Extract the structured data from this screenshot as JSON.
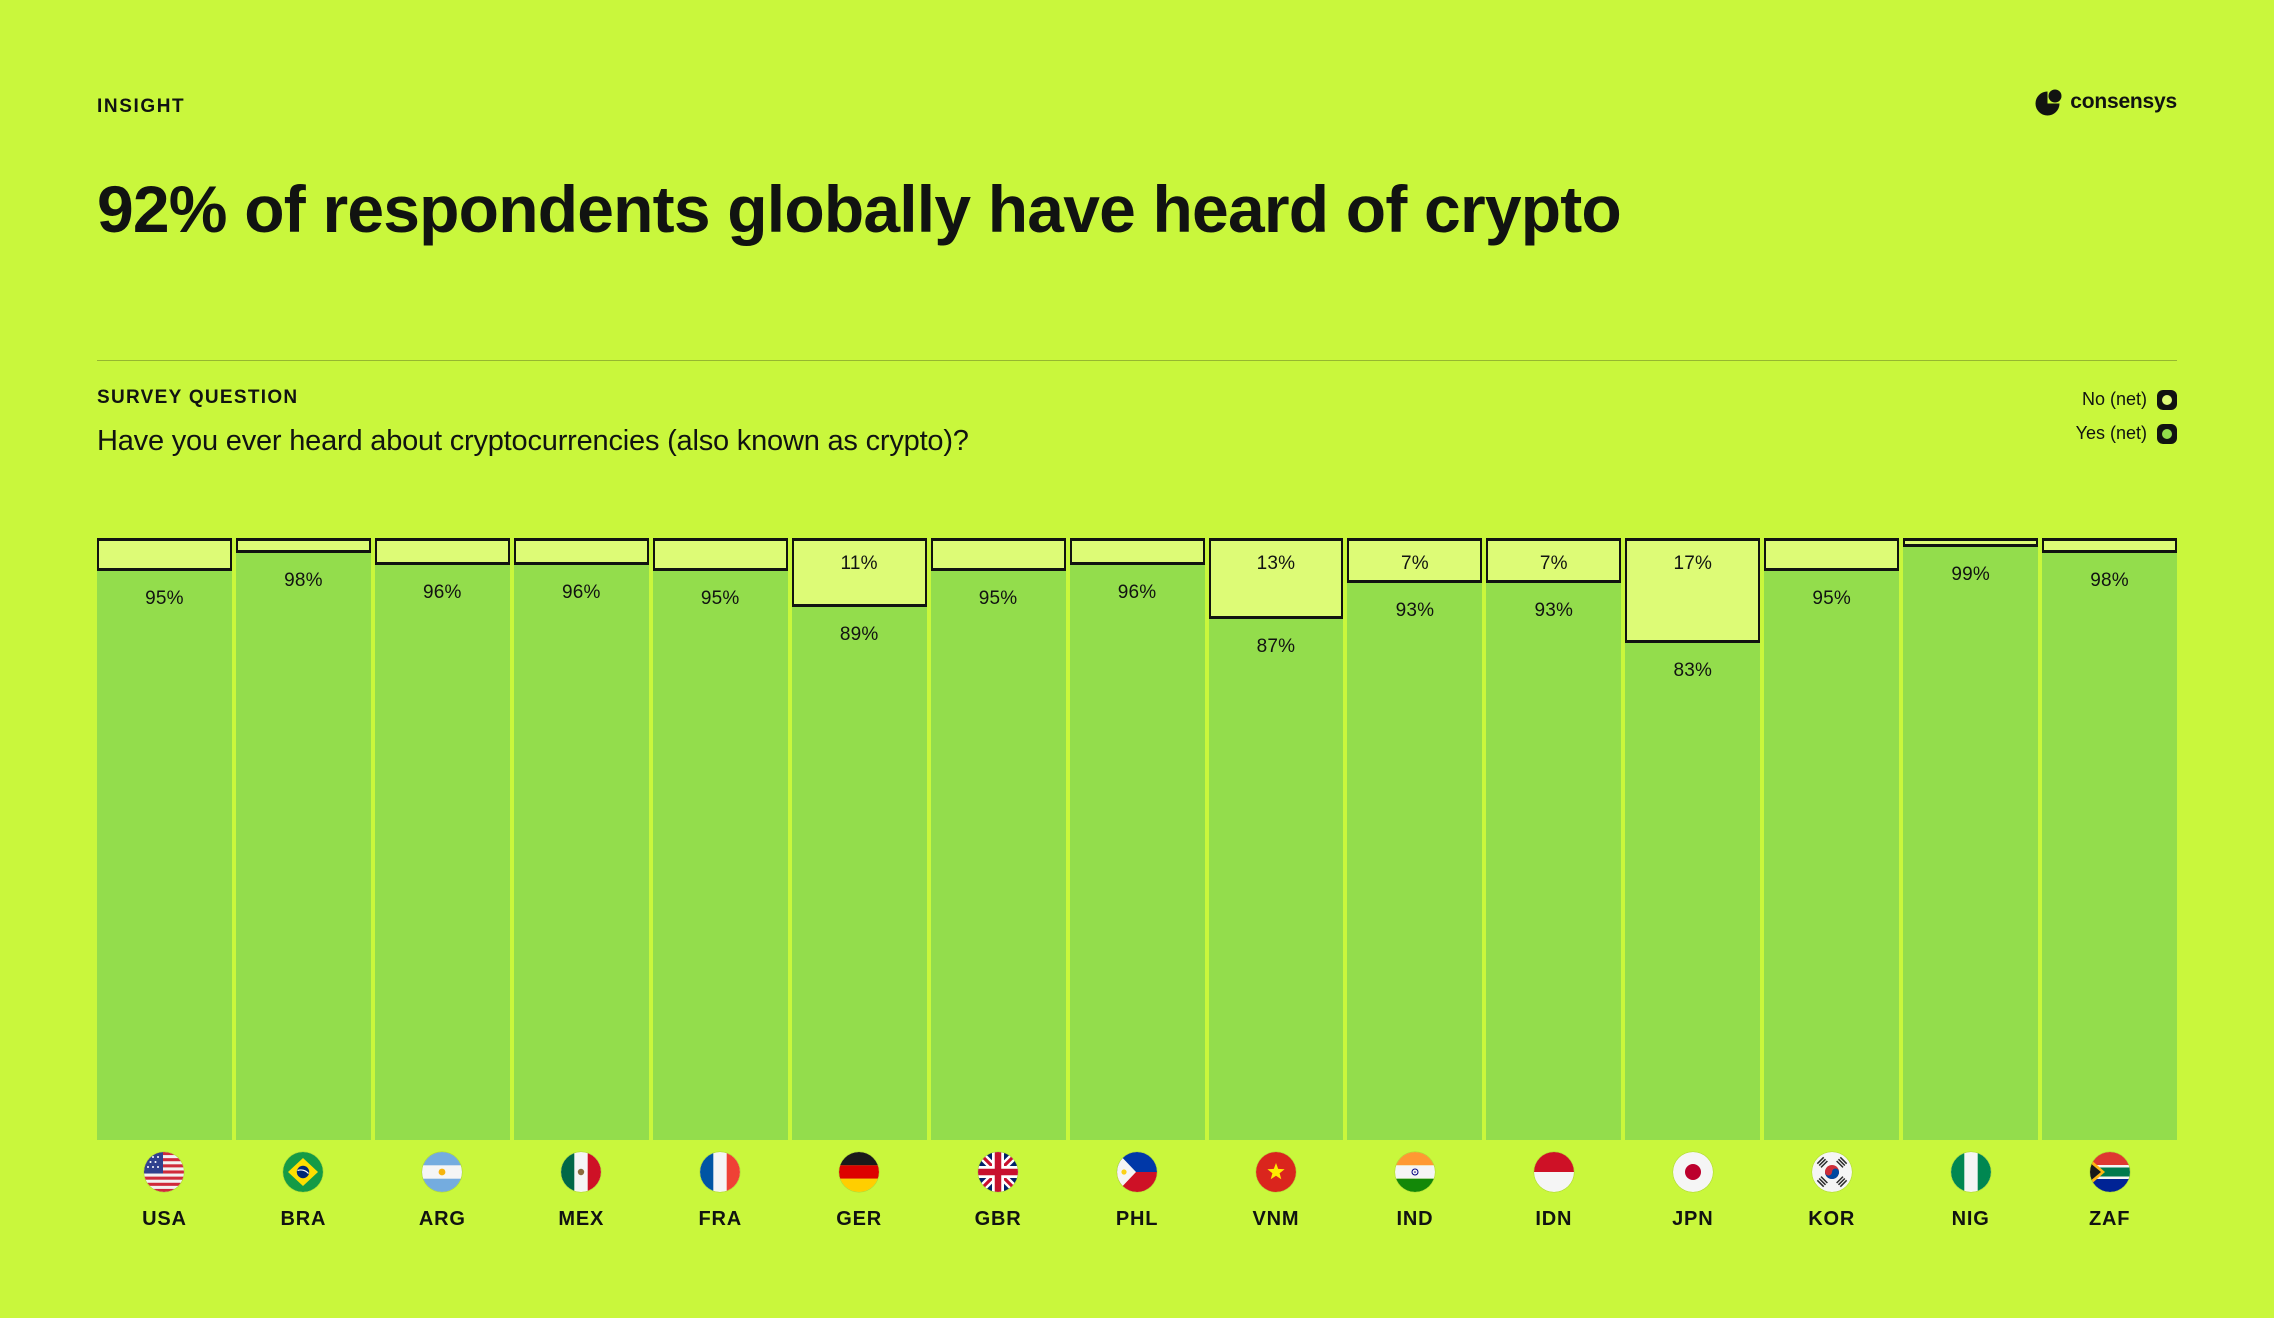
{
  "page": {
    "eyebrow": "INSIGHT",
    "title": "92% of respondents globally have heard of crypto",
    "brand": "consensys",
    "bg_color": "#C9F73C"
  },
  "survey": {
    "label": "SURVEY QUESTION",
    "question": "Have you ever heard about cryptocurrencies (also known as crypto)?"
  },
  "legend": {
    "no_label": "No (net)",
    "yes_label": "Yes (net)"
  },
  "colors": {
    "yes_segment": "#93DD4C",
    "no_segment": "#DDFB76",
    "ink": "#111311"
  },
  "chart_data": {
    "type": "bar",
    "stacked": true,
    "unit": "percent",
    "ylim": [
      0,
      100
    ],
    "legend_position": "top-right",
    "series": [
      "No (net)",
      "Yes (net)"
    ],
    "categories": [
      "USA",
      "BRA",
      "ARG",
      "MEX",
      "FRA",
      "GER",
      "GBR",
      "PHL",
      "VNM",
      "IND",
      "IDN",
      "JPN",
      "KOR",
      "NIG",
      "ZAF"
    ],
    "countries": [
      {
        "code": "USA",
        "yes": 95,
        "no": 5,
        "show_no_label": false
      },
      {
        "code": "BRA",
        "yes": 98,
        "no": 2,
        "show_no_label": false
      },
      {
        "code": "ARG",
        "yes": 96,
        "no": 4,
        "show_no_label": false
      },
      {
        "code": "MEX",
        "yes": 96,
        "no": 4,
        "show_no_label": false
      },
      {
        "code": "FRA",
        "yes": 95,
        "no": 5,
        "show_no_label": false
      },
      {
        "code": "GER",
        "yes": 89,
        "no": 11,
        "show_no_label": true
      },
      {
        "code": "GBR",
        "yes": 95,
        "no": 5,
        "show_no_label": false
      },
      {
        "code": "PHL",
        "yes": 96,
        "no": 4,
        "show_no_label": false
      },
      {
        "code": "VNM",
        "yes": 87,
        "no": 13,
        "show_no_label": true
      },
      {
        "code": "IND",
        "yes": 93,
        "no": 7,
        "show_no_label": true
      },
      {
        "code": "IDN",
        "yes": 93,
        "no": 7,
        "show_no_label": true
      },
      {
        "code": "JPN",
        "yes": 83,
        "no": 17,
        "show_no_label": true
      },
      {
        "code": "KOR",
        "yes": 95,
        "no": 5,
        "show_no_label": false
      },
      {
        "code": "NIG",
        "yes": 99,
        "no": 1,
        "show_no_label": false
      },
      {
        "code": "ZAF",
        "yes": 98,
        "no": 2,
        "show_no_label": false
      }
    ]
  }
}
